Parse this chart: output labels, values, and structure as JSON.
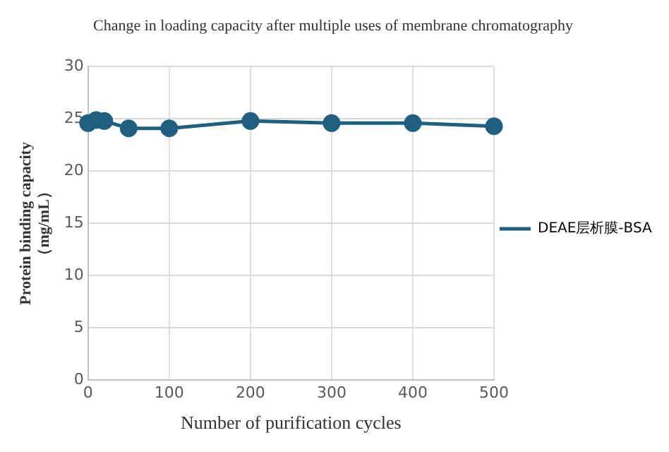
{
  "chart_data": {
    "type": "line",
    "title": "Change in loading capacity after multiple uses of membrane chromatography",
    "xlabel": "Number of purification cycles",
    "ylabel": "Protein binding capacity\n（mg/mL）",
    "x": [
      0,
      10,
      20,
      50,
      100,
      200,
      300,
      400,
      500
    ],
    "series": [
      {
        "name": "DEAE层析膜-BSA",
        "color": "#1f5f7f",
        "values": [
          24.6,
          24.9,
          24.8,
          24.1,
          24.1,
          24.8,
          24.6,
          24.6,
          24.3
        ]
      }
    ],
    "xlim": [
      0,
      500
    ],
    "xticks": [
      0,
      100,
      200,
      300,
      400,
      500
    ],
    "ylim": [
      0,
      30
    ],
    "yticks": [
      0,
      5,
      10,
      15,
      20,
      25,
      30
    ],
    "grid": true,
    "legend": "right",
    "marker": "circle",
    "line_style": "solid"
  }
}
